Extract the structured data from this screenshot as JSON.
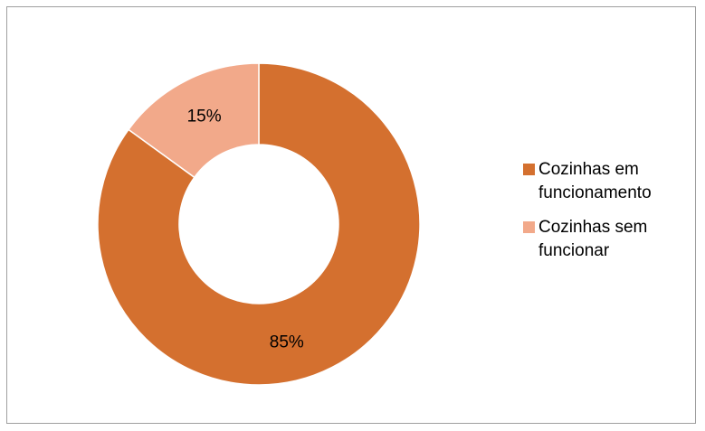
{
  "chart_data": {
    "type": "pie",
    "variant": "donut",
    "title": "",
    "categories": [
      "Cozinhas em funcionamento",
      "Cozinhas sem funcionar"
    ],
    "values": [
      85,
      15
    ],
    "data_labels": [
      "85%",
      "15%"
    ],
    "colors": [
      "#D4702F",
      "#F2A98A"
    ],
    "legend": {
      "position": "right",
      "entries": [
        "Cozinhas em funcionamento",
        "Cozinhas sem funcionar"
      ]
    }
  }
}
